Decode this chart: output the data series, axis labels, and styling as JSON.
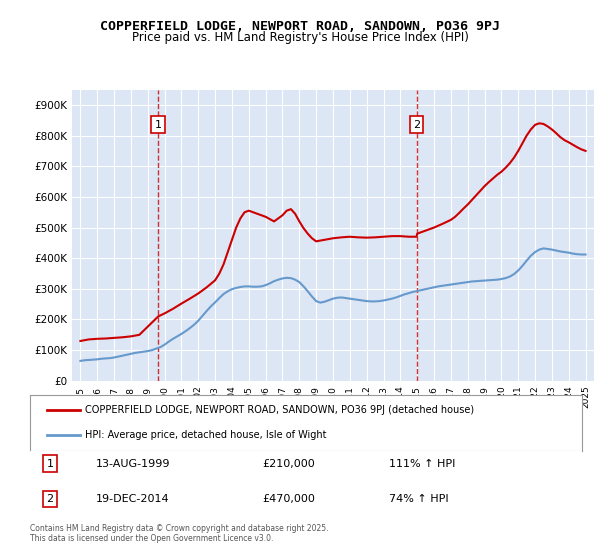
{
  "title": "COPPERFIELD LODGE, NEWPORT ROAD, SANDOWN, PO36 9PJ",
  "subtitle": "Price paid vs. HM Land Registry's House Price Index (HPI)",
  "legend_line1": "COPPERFIELD LODGE, NEWPORT ROAD, SANDOWN, PO36 9PJ (detached house)",
  "legend_line2": "HPI: Average price, detached house, Isle of Wight",
  "annotation1": {
    "num": "1",
    "date": "13-AUG-1999",
    "price": "£210,000",
    "hpi": "111% ↑ HPI",
    "x_year": 1999.62
  },
  "annotation2": {
    "num": "2",
    "date": "19-DEC-2014",
    "price": "£470,000",
    "hpi": "74% ↑ HPI",
    "x_year": 2014.96
  },
  "footer": "Contains HM Land Registry data © Crown copyright and database right 2025.\nThis data is licensed under the Open Government Licence v3.0.",
  "background_color": "#e8eef8",
  "plot_bg_color": "#dce6f5",
  "red_color": "#cc0000",
  "blue_color": "#6699cc",
  "grid_color": "#ffffff",
  "ylim": [
    0,
    950000
  ],
  "yticks": [
    0,
    100000,
    200000,
    300000,
    400000,
    500000,
    600000,
    700000,
    800000,
    900000
  ],
  "xlim_start": 1994.5,
  "xlim_end": 2025.5,
  "hpi_years": [
    1995,
    1995.25,
    1995.5,
    1995.75,
    1996,
    1996.25,
    1996.5,
    1996.75,
    1997,
    1997.25,
    1997.5,
    1997.75,
    1998,
    1998.25,
    1998.5,
    1998.75,
    1999,
    1999.25,
    1999.5,
    1999.75,
    2000,
    2000.25,
    2000.5,
    2000.75,
    2001,
    2001.25,
    2001.5,
    2001.75,
    2002,
    2002.25,
    2002.5,
    2002.75,
    2003,
    2003.25,
    2003.5,
    2003.75,
    2004,
    2004.25,
    2004.5,
    2004.75,
    2005,
    2005.25,
    2005.5,
    2005.75,
    2006,
    2006.25,
    2006.5,
    2006.75,
    2007,
    2007.25,
    2007.5,
    2007.75,
    2008,
    2008.25,
    2008.5,
    2008.75,
    2009,
    2009.25,
    2009.5,
    2009.75,
    2010,
    2010.25,
    2010.5,
    2010.75,
    2011,
    2011.25,
    2011.5,
    2011.75,
    2012,
    2012.25,
    2012.5,
    2012.75,
    2013,
    2013.25,
    2013.5,
    2013.75,
    2014,
    2014.25,
    2014.5,
    2014.75,
    2015,
    2015.25,
    2015.5,
    2015.75,
    2016,
    2016.25,
    2016.5,
    2016.75,
    2017,
    2017.25,
    2017.5,
    2017.75,
    2018,
    2018.25,
    2018.5,
    2018.75,
    2019,
    2019.25,
    2019.5,
    2019.75,
    2020,
    2020.25,
    2020.5,
    2020.75,
    2021,
    2021.25,
    2021.5,
    2021.75,
    2022,
    2022.25,
    2022.5,
    2022.75,
    2023,
    2023.25,
    2023.5,
    2023.75,
    2024,
    2024.25,
    2024.5,
    2024.75,
    2025
  ],
  "hpi_values": [
    65000,
    67000,
    68000,
    69000,
    70000,
    72000,
    73000,
    74000,
    76000,
    79000,
    82000,
    85000,
    88000,
    91000,
    93000,
    95000,
    97000,
    100000,
    105000,
    110000,
    118000,
    128000,
    137000,
    145000,
    153000,
    162000,
    172000,
    183000,
    196000,
    212000,
    228000,
    243000,
    256000,
    270000,
    283000,
    292000,
    299000,
    303000,
    306000,
    308000,
    308000,
    307000,
    307000,
    308000,
    312000,
    318000,
    325000,
    330000,
    334000,
    336000,
    335000,
    330000,
    322000,
    308000,
    292000,
    275000,
    260000,
    255000,
    258000,
    263000,
    268000,
    271000,
    272000,
    270000,
    268000,
    266000,
    264000,
    262000,
    260000,
    259000,
    259000,
    260000,
    262000,
    265000,
    268000,
    272000,
    277000,
    282000,
    286000,
    290000,
    293000,
    296000,
    299000,
    302000,
    305000,
    308000,
    310000,
    312000,
    314000,
    316000,
    318000,
    320000,
    322000,
    324000,
    325000,
    326000,
    327000,
    328000,
    329000,
    330000,
    332000,
    335000,
    340000,
    348000,
    360000,
    375000,
    392000,
    408000,
    420000,
    428000,
    432000,
    430000,
    428000,
    425000,
    422000,
    420000,
    418000,
    415000,
    413000,
    412000,
    412000
  ],
  "price_years": [
    1995,
    1995.5,
    1996,
    1996.5,
    1997,
    1997.5,
    1998,
    1998.5,
    1999.62,
    2000,
    2000.5,
    2001,
    2001.5,
    2002,
    2002.5,
    2003,
    2003.25,
    2003.5,
    2003.75,
    2004,
    2004.25,
    2004.5,
    2004.75,
    2005,
    2005.5,
    2006,
    2006.5,
    2007,
    2007.25,
    2007.5,
    2007.75,
    2008,
    2008.25,
    2008.5,
    2008.75,
    2009,
    2009.5,
    2010,
    2010.5,
    2011,
    2011.5,
    2012,
    2012.5,
    2013,
    2013.5,
    2014,
    2014.5,
    2014.96,
    2015,
    2015.5,
    2016,
    2016.5,
    2017,
    2017.25,
    2017.5,
    2017.75,
    2018,
    2018.25,
    2018.5,
    2018.75,
    2019,
    2019.25,
    2019.5,
    2019.75,
    2020,
    2020.25,
    2020.5,
    2020.75,
    2021,
    2021.25,
    2021.5,
    2021.75,
    2022,
    2022.25,
    2022.5,
    2022.75,
    2023,
    2023.25,
    2023.5,
    2023.75,
    2024,
    2024.25,
    2024.5,
    2024.75,
    2025
  ],
  "price_values": [
    130000,
    135000,
    137000,
    138000,
    140000,
    142000,
    145000,
    150000,
    210000,
    220000,
    235000,
    252000,
    268000,
    285000,
    305000,
    328000,
    350000,
    380000,
    420000,
    460000,
    500000,
    530000,
    550000,
    555000,
    545000,
    535000,
    520000,
    540000,
    555000,
    560000,
    545000,
    520000,
    498000,
    480000,
    465000,
    455000,
    460000,
    465000,
    468000,
    470000,
    468000,
    467000,
    468000,
    470000,
    472000,
    472000,
    470000,
    470000,
    480000,
    490000,
    500000,
    512000,
    525000,
    535000,
    548000,
    562000,
    575000,
    590000,
    605000,
    620000,
    635000,
    648000,
    660000,
    672000,
    682000,
    695000,
    710000,
    728000,
    750000,
    775000,
    800000,
    820000,
    835000,
    840000,
    838000,
    830000,
    820000,
    808000,
    795000,
    785000,
    778000,
    770000,
    762000,
    755000,
    750000
  ]
}
